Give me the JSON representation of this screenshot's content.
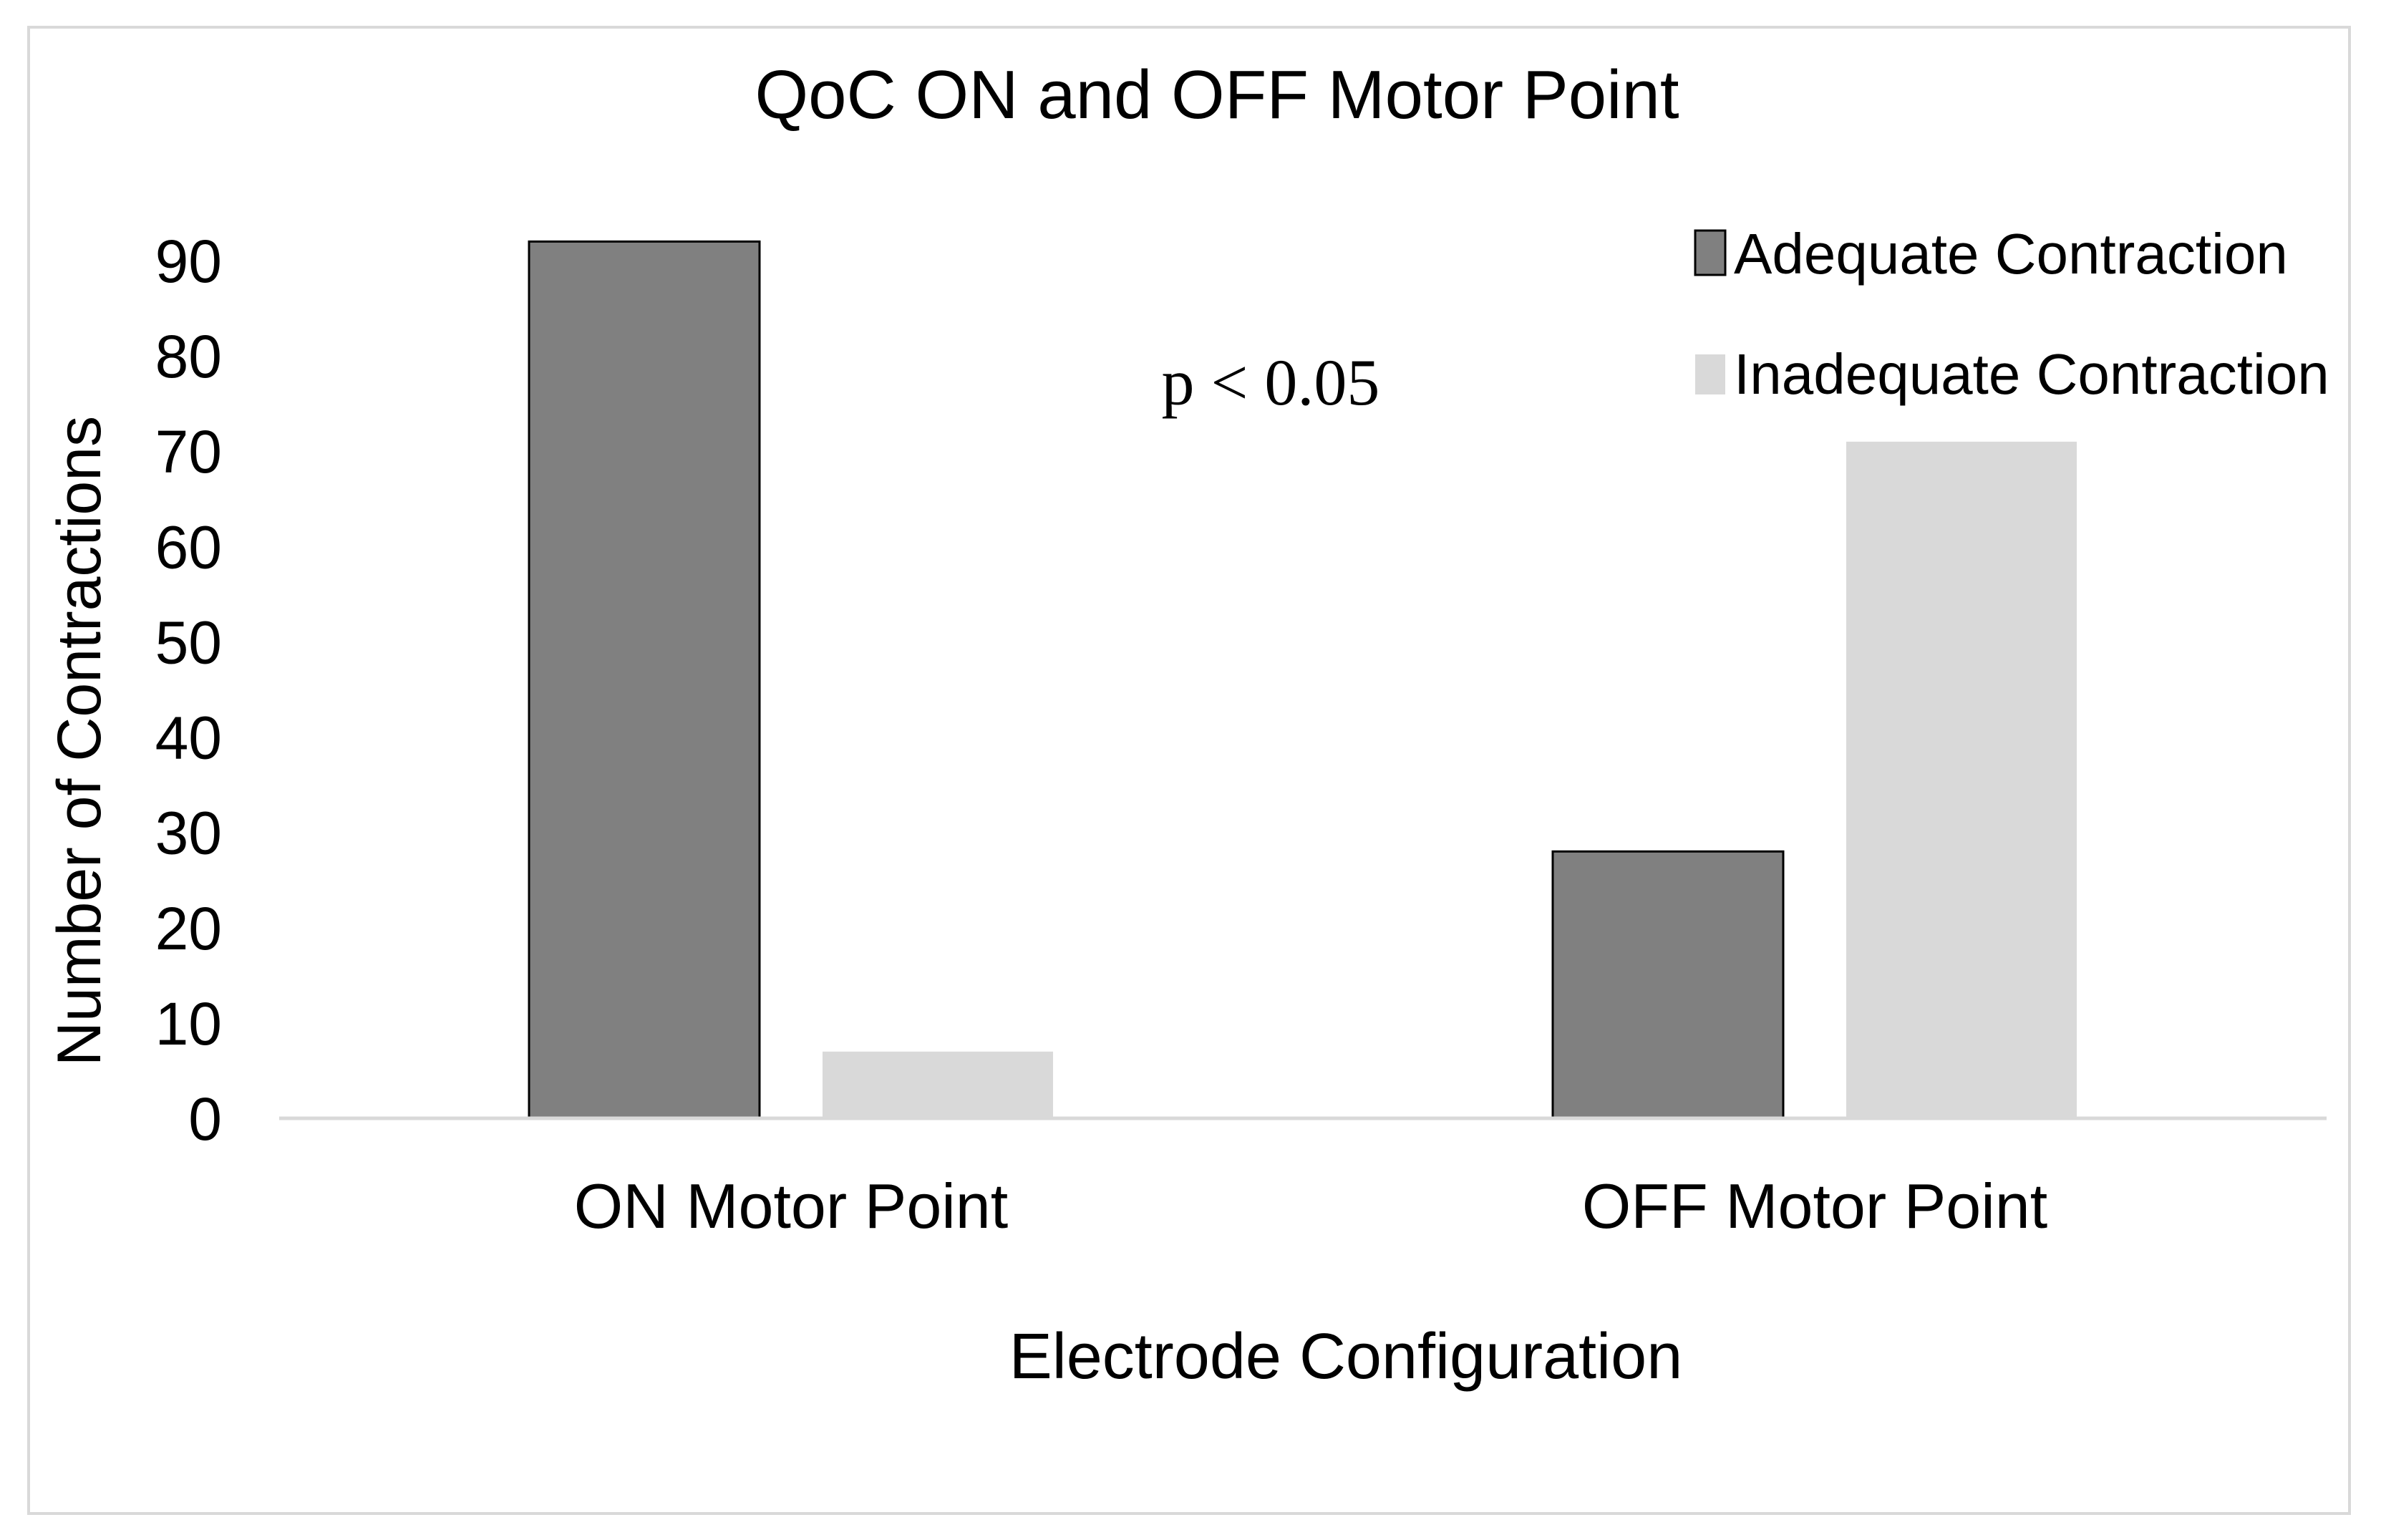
{
  "chart_data": {
    "type": "bar",
    "title": "QoC ON and OFF Motor Point",
    "xlabel": "Electrode Configuration",
    "ylabel": "Number of Contractions",
    "categories": [
      "ON Motor Point",
      "OFF Motor Point"
    ],
    "series": [
      {
        "name": "Adequate Contraction",
        "values": [
          92,
          28
        ],
        "color": "#808080"
      },
      {
        "name": "Inadequate Contraction",
        "values": [
          7,
          71
        ],
        "color": "#d9d9d9"
      }
    ],
    "yticks": [
      "0",
      "10",
      "20",
      "30",
      "40",
      "50",
      "60",
      "70",
      "80",
      "90"
    ],
    "ylim": [
      0,
      90
    ],
    "grid": false,
    "legend_position": "top-right",
    "annotation": "p < 0.05"
  }
}
